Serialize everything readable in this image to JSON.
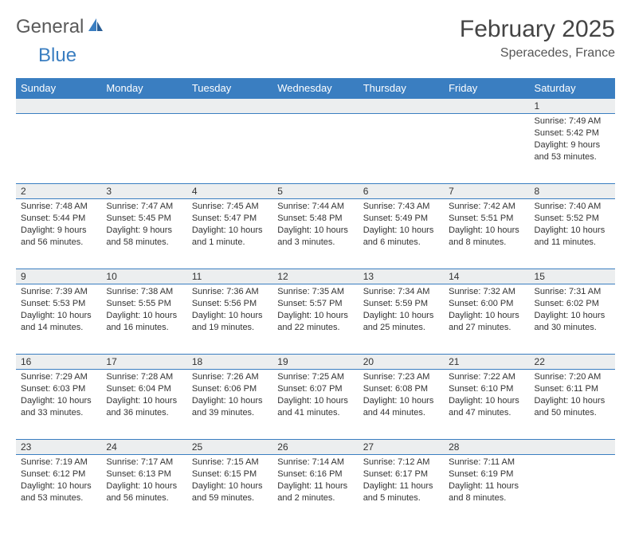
{
  "logo": {
    "text1": "General",
    "text2": "Blue"
  },
  "title": "February 2025",
  "subtitle": "Speracedes, France",
  "colors": {
    "header_bg": "#3a7ec1",
    "header_text": "#ffffff",
    "daynum_bg": "#eceeef",
    "border": "#3a7ec1",
    "text": "#333333",
    "title_color": "#444444",
    "logo_gray": "#5a5a5a",
    "logo_blue": "#3a7ec1"
  },
  "weekdays": [
    "Sunday",
    "Monday",
    "Tuesday",
    "Wednesday",
    "Thursday",
    "Friday",
    "Saturday"
  ],
  "weeks": [
    {
      "nums": [
        "",
        "",
        "",
        "",
        "",
        "",
        "1"
      ],
      "cells": [
        null,
        null,
        null,
        null,
        null,
        null,
        {
          "sunrise": "Sunrise: 7:49 AM",
          "sunset": "Sunset: 5:42 PM",
          "daylight": "Daylight: 9 hours and 53 minutes."
        }
      ]
    },
    {
      "nums": [
        "2",
        "3",
        "4",
        "5",
        "6",
        "7",
        "8"
      ],
      "cells": [
        {
          "sunrise": "Sunrise: 7:48 AM",
          "sunset": "Sunset: 5:44 PM",
          "daylight": "Daylight: 9 hours and 56 minutes."
        },
        {
          "sunrise": "Sunrise: 7:47 AM",
          "sunset": "Sunset: 5:45 PM",
          "daylight": "Daylight: 9 hours and 58 minutes."
        },
        {
          "sunrise": "Sunrise: 7:45 AM",
          "sunset": "Sunset: 5:47 PM",
          "daylight": "Daylight: 10 hours and 1 minute."
        },
        {
          "sunrise": "Sunrise: 7:44 AM",
          "sunset": "Sunset: 5:48 PM",
          "daylight": "Daylight: 10 hours and 3 minutes."
        },
        {
          "sunrise": "Sunrise: 7:43 AM",
          "sunset": "Sunset: 5:49 PM",
          "daylight": "Daylight: 10 hours and 6 minutes."
        },
        {
          "sunrise": "Sunrise: 7:42 AM",
          "sunset": "Sunset: 5:51 PM",
          "daylight": "Daylight: 10 hours and 8 minutes."
        },
        {
          "sunrise": "Sunrise: 7:40 AM",
          "sunset": "Sunset: 5:52 PM",
          "daylight": "Daylight: 10 hours and 11 minutes."
        }
      ]
    },
    {
      "nums": [
        "9",
        "10",
        "11",
        "12",
        "13",
        "14",
        "15"
      ],
      "cells": [
        {
          "sunrise": "Sunrise: 7:39 AM",
          "sunset": "Sunset: 5:53 PM",
          "daylight": "Daylight: 10 hours and 14 minutes."
        },
        {
          "sunrise": "Sunrise: 7:38 AM",
          "sunset": "Sunset: 5:55 PM",
          "daylight": "Daylight: 10 hours and 16 minutes."
        },
        {
          "sunrise": "Sunrise: 7:36 AM",
          "sunset": "Sunset: 5:56 PM",
          "daylight": "Daylight: 10 hours and 19 minutes."
        },
        {
          "sunrise": "Sunrise: 7:35 AM",
          "sunset": "Sunset: 5:57 PM",
          "daylight": "Daylight: 10 hours and 22 minutes."
        },
        {
          "sunrise": "Sunrise: 7:34 AM",
          "sunset": "Sunset: 5:59 PM",
          "daylight": "Daylight: 10 hours and 25 minutes."
        },
        {
          "sunrise": "Sunrise: 7:32 AM",
          "sunset": "Sunset: 6:00 PM",
          "daylight": "Daylight: 10 hours and 27 minutes."
        },
        {
          "sunrise": "Sunrise: 7:31 AM",
          "sunset": "Sunset: 6:02 PM",
          "daylight": "Daylight: 10 hours and 30 minutes."
        }
      ]
    },
    {
      "nums": [
        "16",
        "17",
        "18",
        "19",
        "20",
        "21",
        "22"
      ],
      "cells": [
        {
          "sunrise": "Sunrise: 7:29 AM",
          "sunset": "Sunset: 6:03 PM",
          "daylight": "Daylight: 10 hours and 33 minutes."
        },
        {
          "sunrise": "Sunrise: 7:28 AM",
          "sunset": "Sunset: 6:04 PM",
          "daylight": "Daylight: 10 hours and 36 minutes."
        },
        {
          "sunrise": "Sunrise: 7:26 AM",
          "sunset": "Sunset: 6:06 PM",
          "daylight": "Daylight: 10 hours and 39 minutes."
        },
        {
          "sunrise": "Sunrise: 7:25 AM",
          "sunset": "Sunset: 6:07 PM",
          "daylight": "Daylight: 10 hours and 41 minutes."
        },
        {
          "sunrise": "Sunrise: 7:23 AM",
          "sunset": "Sunset: 6:08 PM",
          "daylight": "Daylight: 10 hours and 44 minutes."
        },
        {
          "sunrise": "Sunrise: 7:22 AM",
          "sunset": "Sunset: 6:10 PM",
          "daylight": "Daylight: 10 hours and 47 minutes."
        },
        {
          "sunrise": "Sunrise: 7:20 AM",
          "sunset": "Sunset: 6:11 PM",
          "daylight": "Daylight: 10 hours and 50 minutes."
        }
      ]
    },
    {
      "nums": [
        "23",
        "24",
        "25",
        "26",
        "27",
        "28",
        ""
      ],
      "cells": [
        {
          "sunrise": "Sunrise: 7:19 AM",
          "sunset": "Sunset: 6:12 PM",
          "daylight": "Daylight: 10 hours and 53 minutes."
        },
        {
          "sunrise": "Sunrise: 7:17 AM",
          "sunset": "Sunset: 6:13 PM",
          "daylight": "Daylight: 10 hours and 56 minutes."
        },
        {
          "sunrise": "Sunrise: 7:15 AM",
          "sunset": "Sunset: 6:15 PM",
          "daylight": "Daylight: 10 hours and 59 minutes."
        },
        {
          "sunrise": "Sunrise: 7:14 AM",
          "sunset": "Sunset: 6:16 PM",
          "daylight": "Daylight: 11 hours and 2 minutes."
        },
        {
          "sunrise": "Sunrise: 7:12 AM",
          "sunset": "Sunset: 6:17 PM",
          "daylight": "Daylight: 11 hours and 5 minutes."
        },
        {
          "sunrise": "Sunrise: 7:11 AM",
          "sunset": "Sunset: 6:19 PM",
          "daylight": "Daylight: 11 hours and 8 minutes."
        },
        null
      ]
    }
  ]
}
